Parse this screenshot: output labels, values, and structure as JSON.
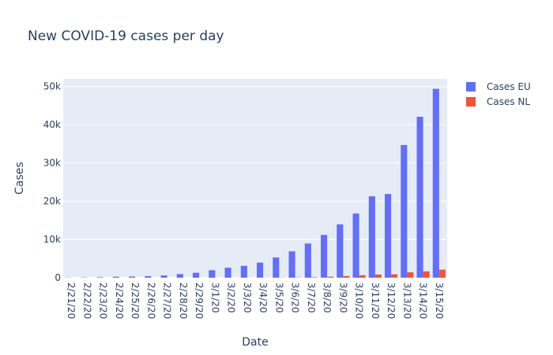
{
  "chart_data": {
    "type": "bar",
    "title": "New COVID-19 cases per day",
    "xlabel": "Date",
    "ylabel": "Cases",
    "ylim": [
      0,
      52000
    ],
    "yticks": [
      0,
      10000,
      20000,
      30000,
      40000,
      50000
    ],
    "ytick_labels": [
      "0",
      "10k",
      "20k",
      "30k",
      "40k",
      "50k"
    ],
    "categories": [
      "2/21/20",
      "2/22/20",
      "2/23/20",
      "2/24/20",
      "2/25/20",
      "2/26/20",
      "2/27/20",
      "2/28/20",
      "2/29/20",
      "3/1/20",
      "3/2/20",
      "3/3/20",
      "3/4/20",
      "3/5/20",
      "3/6/20",
      "3/7/20",
      "3/8/20",
      "3/9/20",
      "3/10/20",
      "3/11/20",
      "3/12/20",
      "3/13/20",
      "3/14/20",
      "3/15/20"
    ],
    "series": [
      {
        "name": "Cases EU",
        "color": "#636efa",
        "values": [
          50,
          80,
          150,
          250,
          300,
          400,
          600,
          950,
          1300,
          1950,
          2600,
          3100,
          3950,
          5300,
          6900,
          8950,
          11200,
          13950,
          16800,
          21300,
          21900,
          34700,
          42100,
          49400
        ]
      },
      {
        "name": "Cases NL",
        "color": "#ef553b",
        "values": [
          0,
          0,
          0,
          0,
          0,
          0,
          1,
          2,
          5,
          10,
          15,
          20,
          30,
          50,
          80,
          130,
          260,
          440,
          650,
          820,
          890,
          1400,
          1650,
          2100
        ]
      }
    ],
    "grid": true,
    "legend_position": "top-right"
  }
}
